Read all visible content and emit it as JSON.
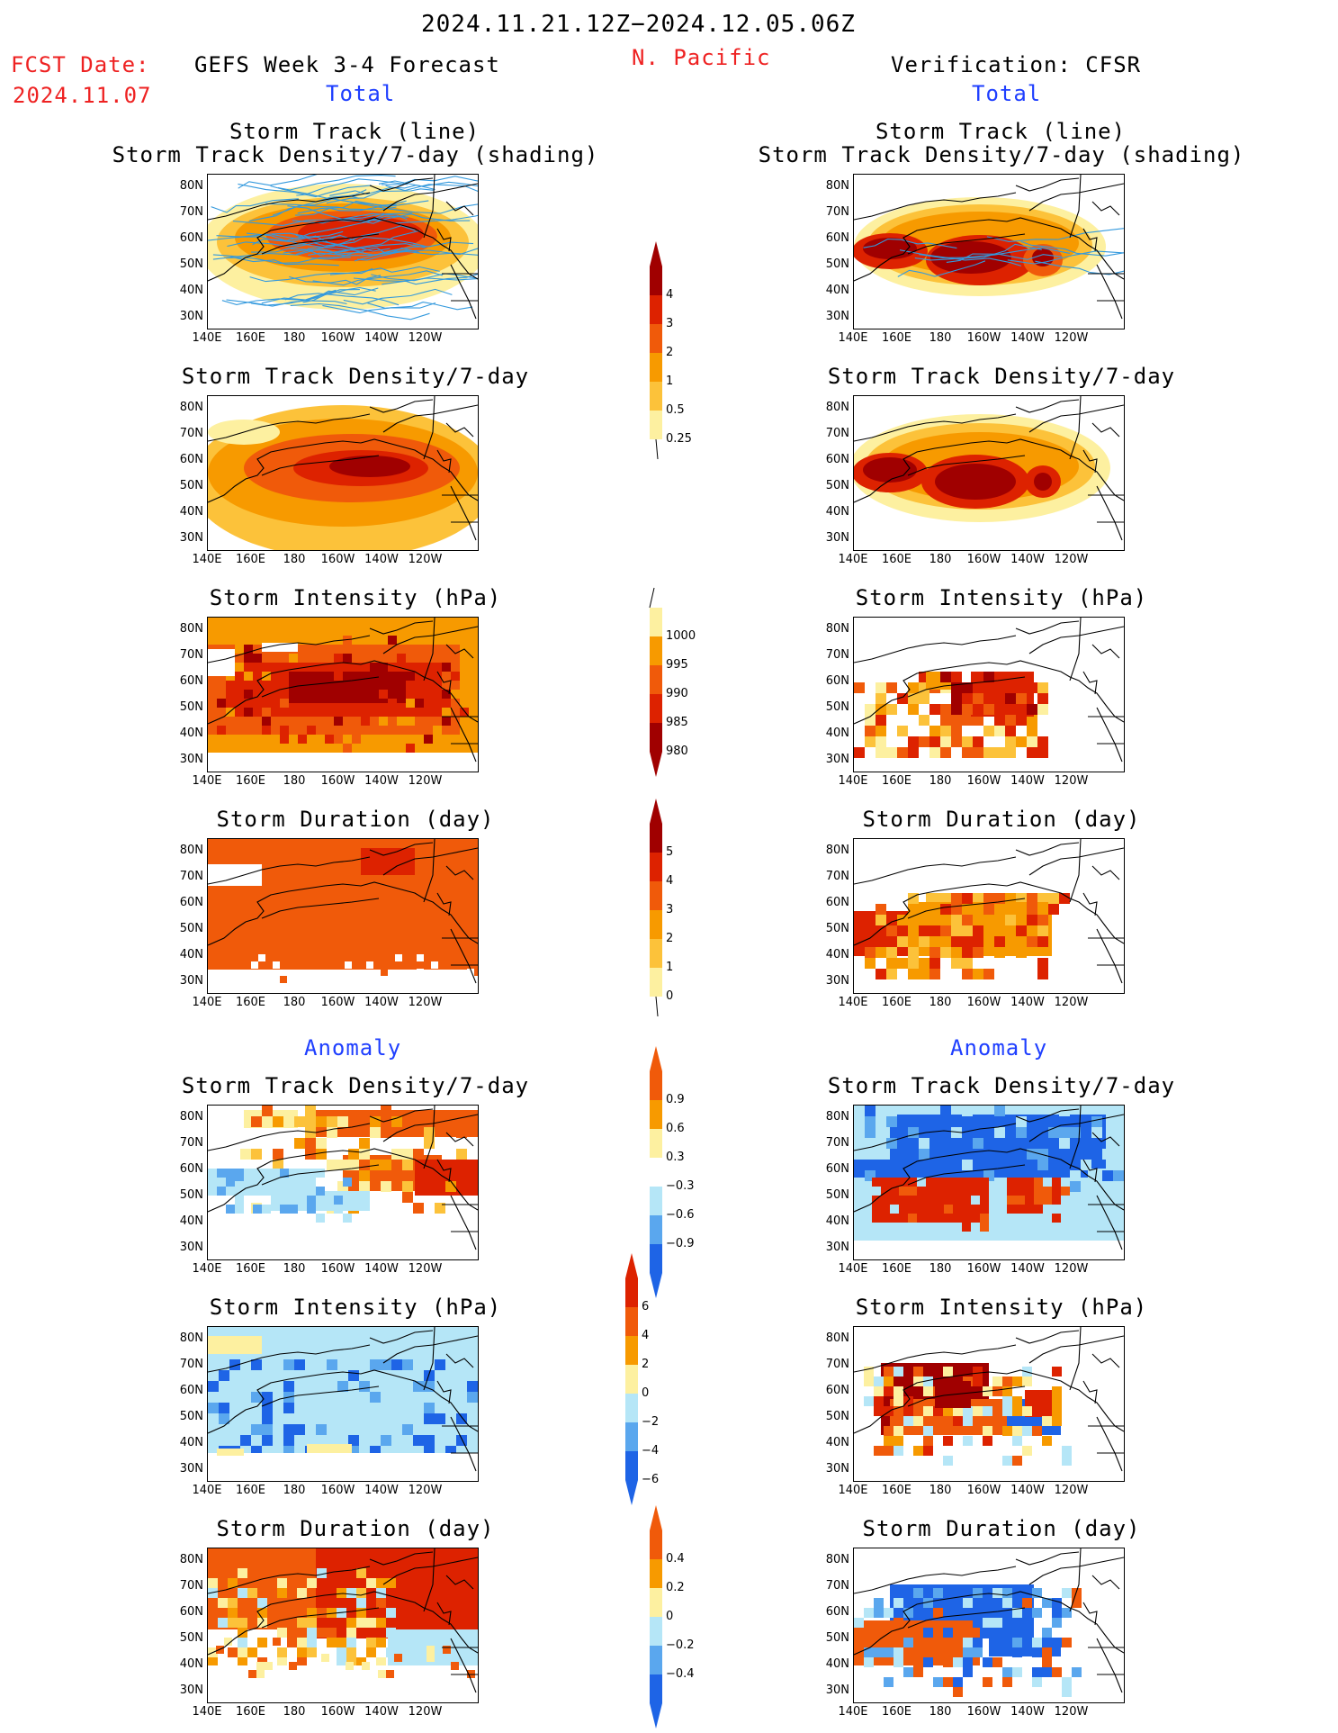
{
  "header": {
    "date_range": "2024.11.21.12Z−2024.12.05.06Z",
    "region": "N. Pacific",
    "fcst_label": "FCST Date:",
    "fcst_date": "2024.11.07",
    "left_title": "GEFS Week 3-4 Forecast",
    "right_title": "Verification: CFSR",
    "total_label": "Total",
    "anomaly_label": "Anomaly"
  },
  "panel_titles": {
    "track_line": "Storm Track (line)",
    "track_shading": "Storm Track Density/7-day (shading)",
    "density": "Storm Track Density/7-day",
    "intensity": "Storm Intensity (hPa)",
    "duration": "Storm Duration (day)"
  },
  "axes": {
    "lat_labels": [
      "80N",
      "70N",
      "60N",
      "50N",
      "40N",
      "30N"
    ],
    "lon_labels": [
      "140E",
      "160E",
      "180",
      "160W",
      "140W",
      "120W"
    ]
  },
  "colorbars": {
    "density_total": [
      "4",
      "3",
      "2",
      "1",
      "0.5",
      "0.25"
    ],
    "intensity_total": [
      "1000",
      "995",
      "990",
      "985",
      "980"
    ],
    "duration_total": [
      "5",
      "4",
      "3",
      "2",
      "1",
      "0"
    ],
    "density_anom": [
      "0.9",
      "0.6",
      "0.3",
      "−0.3",
      "−0.6",
      "−0.9"
    ],
    "intensity_anom": [
      "6",
      "4",
      "2",
      "0",
      "−2",
      "−4",
      "−6"
    ],
    "duration_anom": [
      "0.4",
      "0.2",
      "0",
      "−0.2",
      "−0.4"
    ]
  },
  "colors": {
    "dark_red": "#a00000",
    "red": "#dd2200",
    "orange_red": "#f05a0a",
    "orange": "#f79a00",
    "light_orange": "#fcc23a",
    "yellow": "#fdf0a0",
    "light_blue": "#b5e6f7",
    "mid_blue": "#5aa7ee",
    "blue": "#1e64e6",
    "track_line": "#3399dd"
  }
}
